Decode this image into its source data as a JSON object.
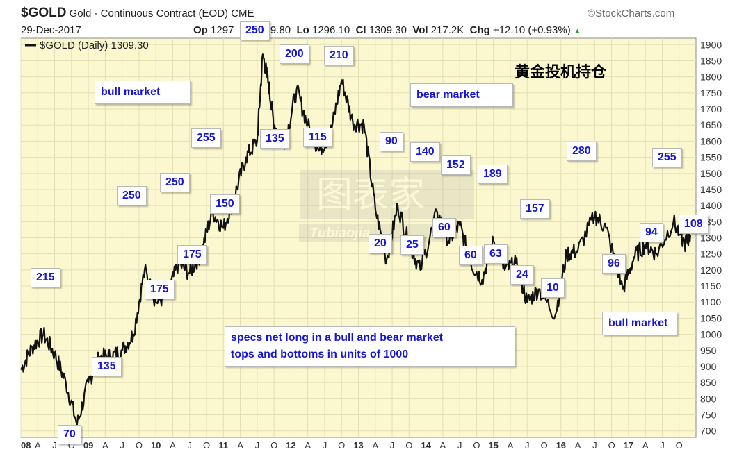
{
  "header": {
    "symbol": "$GOLD",
    "description": "Gold - Continuous Contract (EOD) CME",
    "date": "29-Dec-2017",
    "open_label": "Op",
    "open": "1297",
    "high_label": "Hi",
    "high": "1309.80",
    "low_label": "Lo",
    "low": "1296.10",
    "close_label": "Cl",
    "close": "1309.30",
    "vol_label": "Vol",
    "vol": "217.2K",
    "chg_label": "Chg",
    "chg": "+12.10 (+0.93%)",
    "source": "©StockCharts.com"
  },
  "legend": "$GOLD (Daily) 1309.30",
  "chinese_title": "黄金投机持仓",
  "chart_data": {
    "type": "line",
    "title": "$GOLD (Daily) 1309.30",
    "ylim": [
      680,
      1920
    ],
    "yticks": [
      700,
      750,
      800,
      850,
      900,
      950,
      1000,
      1050,
      1100,
      1150,
      1200,
      1250,
      1300,
      1350,
      1400,
      1450,
      1500,
      1550,
      1600,
      1650,
      1700,
      1750,
      1800,
      1850,
      1900
    ],
    "xticks": [
      "08",
      "A",
      "J",
      "O",
      "09",
      "A",
      "J",
      "O",
      "10",
      "A",
      "J",
      "O",
      "11",
      "A",
      "J",
      "O",
      "12",
      "A",
      "J",
      "O",
      "13",
      "A",
      "J",
      "O",
      "14",
      "A",
      "J",
      "O",
      "15",
      "A",
      "J",
      "O",
      "16",
      "A",
      "J",
      "O",
      "17",
      "A",
      "J",
      "O"
    ],
    "grid": true,
    "series": [
      {
        "name": "$GOLD (Daily)",
        "x": [
          "2008-01",
          "2008-03",
          "2008-05",
          "2008-07",
          "2008-09",
          "2008-11",
          "2009-01",
          "2009-03",
          "2009-05",
          "2009-07",
          "2009-09",
          "2009-11",
          "2010-01",
          "2010-03",
          "2010-05",
          "2010-07",
          "2010-09",
          "2010-11",
          "2011-01",
          "2011-03",
          "2011-05",
          "2011-07",
          "2011-08",
          "2011-09",
          "2011-10",
          "2011-12",
          "2012-02",
          "2012-04",
          "2012-06",
          "2012-08",
          "2012-10",
          "2012-12",
          "2013-02",
          "2013-04",
          "2013-06",
          "2013-08",
          "2013-10",
          "2013-12",
          "2014-03",
          "2014-05",
          "2014-07",
          "2014-09",
          "2014-11",
          "2015-01",
          "2015-03",
          "2015-05",
          "2015-07",
          "2015-09",
          "2015-12",
          "2016-02",
          "2016-04",
          "2016-07",
          "2016-09",
          "2016-12",
          "2017-02",
          "2017-04",
          "2017-06",
          "2017-09",
          "2017-11",
          "2017-12"
        ],
        "values": [
          890,
          960,
          1000,
          940,
          850,
          720,
          850,
          930,
          930,
          950,
          1000,
          1200,
          1100,
          1120,
          1220,
          1190,
          1250,
          1380,
          1330,
          1430,
          1550,
          1600,
          1870,
          1780,
          1650,
          1600,
          1760,
          1650,
          1570,
          1620,
          1790,
          1660,
          1650,
          1390,
          1230,
          1400,
          1280,
          1200,
          1380,
          1290,
          1340,
          1220,
          1170,
          1290,
          1200,
          1220,
          1100,
          1140,
          1060,
          1250,
          1260,
          1370,
          1330,
          1140,
          1240,
          1280,
          1250,
          1350,
          1280,
          1309
        ]
      }
    ],
    "annotations": [
      {
        "label": "bull market"
      },
      {
        "label": "bear market"
      },
      {
        "label": "bull market"
      },
      {
        "label": "specs net long in a bull and bear market"
      },
      {
        "label": "tops and bottoms in units of 1000"
      },
      {
        "label": "215"
      },
      {
        "label": "70"
      },
      {
        "label": "135"
      },
      {
        "label": "250"
      },
      {
        "label": "175"
      },
      {
        "label": "250"
      },
      {
        "label": "175"
      },
      {
        "label": "255"
      },
      {
        "label": "150"
      },
      {
        "label": "250"
      },
      {
        "label": "135"
      },
      {
        "label": "200"
      },
      {
        "label": "115"
      },
      {
        "label": "210"
      },
      {
        "label": "90"
      },
      {
        "label": "20"
      },
      {
        "label": "140"
      },
      {
        "label": "25"
      },
      {
        "label": "152"
      },
      {
        "label": "60"
      },
      {
        "label": "60"
      },
      {
        "label": "189"
      },
      {
        "label": "63"
      },
      {
        "label": "157"
      },
      {
        "label": "24"
      },
      {
        "label": "10"
      },
      {
        "label": "280"
      },
      {
        "label": "96"
      },
      {
        "label": "255"
      },
      {
        "label": "94"
      },
      {
        "label": "108"
      }
    ]
  },
  "watermark": {
    "text": "图表家",
    "sub": "Tubiaojia"
  }
}
